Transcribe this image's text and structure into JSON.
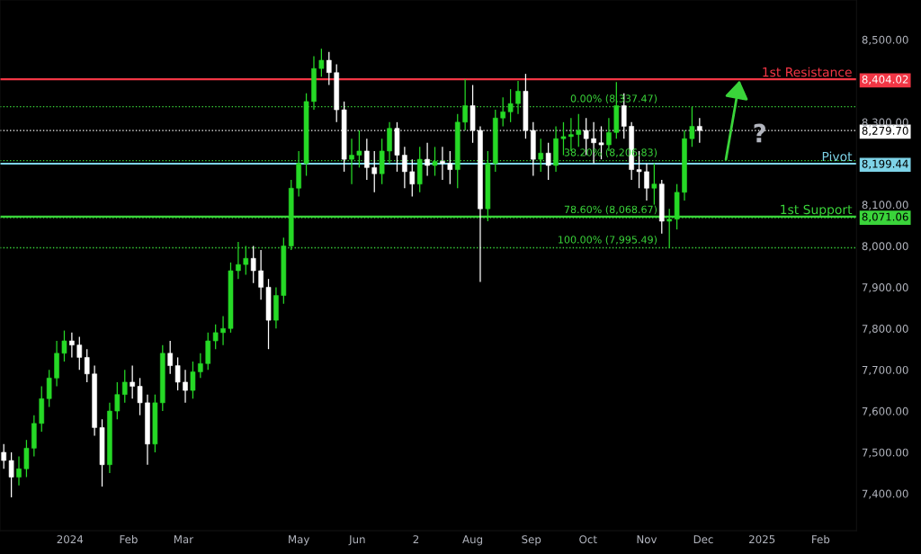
{
  "chart_data": {
    "type": "candlestick",
    "x": [
      "2023-11-27",
      "2023-12-01",
      "2023-12-05",
      "2023-12-09",
      "2023-12-13",
      "2023-12-17",
      "2023-12-21",
      "2023-12-25",
      "2023-12-29",
      "2024-01-02",
      "2024-01-06",
      "2024-01-10",
      "2024-01-14",
      "2024-01-18",
      "2024-01-22",
      "2024-01-26",
      "2024-01-30",
      "2024-02-03",
      "2024-02-07",
      "2024-02-11",
      "2024-02-15",
      "2024-02-19",
      "2024-02-23",
      "2024-02-27",
      "2024-03-02",
      "2024-03-06",
      "2024-03-10",
      "2024-03-14",
      "2024-03-18",
      "2024-03-22",
      "2024-03-26",
      "2024-03-30",
      "2024-04-03",
      "2024-04-07",
      "2024-04-11",
      "2024-04-15",
      "2024-04-19",
      "2024-04-23",
      "2024-04-27",
      "2024-05-01",
      "2024-05-05",
      "2024-05-09",
      "2024-05-13",
      "2024-05-17",
      "2024-05-21",
      "2024-05-25",
      "2024-05-29",
      "2024-06-02",
      "2024-06-06",
      "2024-06-10",
      "2024-06-14",
      "2024-06-18",
      "2024-06-22",
      "2024-06-26",
      "2024-06-30",
      "2024-07-04",
      "2024-07-08",
      "2024-07-12",
      "2024-07-16",
      "2024-07-20",
      "2024-07-24",
      "2024-07-28",
      "2024-08-01",
      "2024-08-05",
      "2024-08-09",
      "2024-08-13",
      "2024-08-17",
      "2024-08-21",
      "2024-08-25",
      "2024-08-29",
      "2024-09-02",
      "2024-09-06",
      "2024-09-10",
      "2024-09-14",
      "2024-09-18",
      "2024-09-22",
      "2024-09-26",
      "2024-09-30",
      "2024-10-04",
      "2024-10-08",
      "2024-10-12",
      "2024-10-16",
      "2024-10-20",
      "2024-10-24",
      "2024-10-28",
      "2024-11-01",
      "2024-11-05",
      "2024-11-09",
      "2024-11-13",
      "2024-11-17",
      "2024-11-21",
      "2024-11-25",
      "2024-11-29"
    ],
    "ohlc": [
      [
        7500,
        7520,
        7460,
        7480
      ],
      [
        7480,
        7500,
        7391,
        7440
      ],
      [
        7440,
        7490,
        7420,
        7460
      ],
      [
        7460,
        7530,
        7440,
        7510
      ],
      [
        7510,
        7590,
        7490,
        7570
      ],
      [
        7570,
        7660,
        7550,
        7630
      ],
      [
        7630,
        7700,
        7610,
        7680
      ],
      [
        7680,
        7770,
        7660,
        7740
      ],
      [
        7740,
        7795,
        7720,
        7770
      ],
      [
        7770,
        7790,
        7730,
        7760
      ],
      [
        7760,
        7780,
        7700,
        7730
      ],
      [
        7730,
        7750,
        7670,
        7690
      ],
      [
        7690,
        7710,
        7540,
        7560
      ],
      [
        7560,
        7580,
        7417,
        7470
      ],
      [
        7470,
        7620,
        7450,
        7600
      ],
      [
        7600,
        7670,
        7580,
        7640
      ],
      [
        7640,
        7700,
        7620,
        7670
      ],
      [
        7670,
        7710,
        7630,
        7660
      ],
      [
        7660,
        7680,
        7590,
        7620
      ],
      [
        7620,
        7640,
        7470,
        7520
      ],
      [
        7520,
        7640,
        7500,
        7620
      ],
      [
        7620,
        7760,
        7600,
        7740
      ],
      [
        7740,
        7770,
        7690,
        7710
      ],
      [
        7710,
        7730,
        7650,
        7670
      ],
      [
        7670,
        7700,
        7620,
        7650
      ],
      [
        7650,
        7720,
        7630,
        7695
      ],
      [
        7695,
        7740,
        7680,
        7715
      ],
      [
        7715,
        7790,
        7700,
        7770
      ],
      [
        7770,
        7810,
        7750,
        7790
      ],
      [
        7790,
        7830,
        7760,
        7800
      ],
      [
        7800,
        7960,
        7790,
        7940
      ],
      [
        7940,
        8010,
        7920,
        7955
      ],
      [
        7955,
        8000,
        7930,
        7970
      ],
      [
        7970,
        8000,
        7910,
        7940
      ],
      [
        7940,
        7990,
        7870,
        7900
      ],
      [
        7900,
        7920,
        7750,
        7820
      ],
      [
        7820,
        7900,
        7800,
        7880
      ],
      [
        7880,
        8020,
        7860,
        8000
      ],
      [
        8000,
        8160,
        7990,
        8140
      ],
      [
        8140,
        8230,
        8120,
        8200
      ],
      [
        8200,
        8370,
        8170,
        8350
      ],
      [
        8350,
        8460,
        8330,
        8430
      ],
      [
        8430,
        8478,
        8410,
        8450
      ],
      [
        8450,
        8470,
        8390,
        8420
      ],
      [
        8420,
        8440,
        8300,
        8330
      ],
      [
        8330,
        8350,
        8180,
        8210
      ],
      [
        8210,
        8260,
        8150,
        8220
      ],
      [
        8220,
        8280,
        8190,
        8230
      ],
      [
        8230,
        8260,
        8160,
        8190
      ],
      [
        8190,
        8230,
        8130,
        8175
      ],
      [
        8175,
        8260,
        8150,
        8230
      ],
      [
        8230,
        8300,
        8200,
        8285
      ],
      [
        8285,
        8300,
        8180,
        8220
      ],
      [
        8220,
        8240,
        8140,
        8180
      ],
      [
        8180,
        8210,
        8120,
        8150
      ],
      [
        8150,
        8240,
        8130,
        8210
      ],
      [
        8210,
        8250,
        8170,
        8195
      ],
      [
        8195,
        8240,
        8170,
        8205
      ],
      [
        8205,
        8240,
        8160,
        8200
      ],
      [
        8200,
        8230,
        8150,
        8185
      ],
      [
        8185,
        8320,
        8140,
        8300
      ],
      [
        8300,
        8404,
        8280,
        8340
      ],
      [
        8340,
        8390,
        8250,
        8280
      ],
      [
        8280,
        8290,
        7913,
        8090
      ],
      [
        8090,
        8230,
        8060,
        8200
      ],
      [
        8200,
        8330,
        8180,
        8310
      ],
      [
        8310,
        8360,
        8290,
        8325
      ],
      [
        8325,
        8380,
        8300,
        8345
      ],
      [
        8345,
        8400,
        8320,
        8375
      ],
      [
        8375,
        8417,
        8260,
        8280
      ],
      [
        8280,
        8300,
        8170,
        8210
      ],
      [
        8210,
        8260,
        8180,
        8225
      ],
      [
        8225,
        8250,
        8160,
        8195
      ],
      [
        8195,
        8290,
        8180,
        8260
      ],
      [
        8260,
        8300,
        8220,
        8265
      ],
      [
        8265,
        8310,
        8230,
        8270
      ],
      [
        8270,
        8320,
        8240,
        8280
      ],
      [
        8280,
        8310,
        8220,
        8260
      ],
      [
        8260,
        8300,
        8200,
        8250
      ],
      [
        8250,
        8290,
        8210,
        8245
      ],
      [
        8245,
        8310,
        8230,
        8275
      ],
      [
        8275,
        8397,
        8260,
        8340
      ],
      [
        8340,
        8370,
        8260,
        8290
      ],
      [
        8290,
        8300,
        8160,
        8185
      ],
      [
        8185,
        8230,
        8140,
        8180
      ],
      [
        8180,
        8200,
        8110,
        8140
      ],
      [
        8140,
        8200,
        8100,
        8150
      ],
      [
        8150,
        8160,
        8030,
        8060
      ],
      [
        8060,
        8090,
        7995.49,
        8065
      ],
      [
        8065,
        8150,
        8040,
        8130
      ],
      [
        8130,
        8280,
        8110,
        8260
      ],
      [
        8260,
        8337.47,
        8240,
        8290
      ],
      [
        8290,
        8310,
        8250,
        8279.7
      ]
    ],
    "colors": [
      "#ffffff",
      "#ffffff",
      "#26d926",
      "#26d926",
      "#26d926",
      "#26d926",
      "#26d926",
      "#26d926",
      "#26d926",
      "#ffffff",
      "#ffffff",
      "#ffffff",
      "#ffffff",
      "#ffffff",
      "#26d926",
      "#26d926",
      "#26d926",
      "#ffffff",
      "#ffffff",
      "#ffffff",
      "#26d926",
      "#26d926",
      "#ffffff",
      "#ffffff",
      "#ffffff",
      "#26d926",
      "#26d926",
      "#26d926",
      "#26d926",
      "#26d926",
      "#26d926",
      "#26d926",
      "#26d926",
      "#ffffff",
      "#ffffff",
      "#ffffff",
      "#26d926",
      "#26d926",
      "#26d926",
      "#26d926",
      "#26d926",
      "#26d926",
      "#26d926",
      "#ffffff",
      "#ffffff",
      "#ffffff",
      "#26d926",
      "#26d926",
      "#ffffff",
      "#ffffff",
      "#26d926",
      "#26d926",
      "#ffffff",
      "#ffffff",
      "#ffffff",
      "#26d926",
      "#ffffff",
      "#26d926",
      "#ffffff",
      "#ffffff",
      "#26d926",
      "#26d926",
      "#ffffff",
      "#ffffff",
      "#26d926",
      "#26d926",
      "#26d926",
      "#26d926",
      "#26d926",
      "#ffffff",
      "#ffffff",
      "#26d926",
      "#ffffff",
      "#26d926",
      "#26d926",
      "#26d926",
      "#26d926",
      "#ffffff",
      "#ffffff",
      "#ffffff",
      "#26d926",
      "#26d926",
      "#ffffff",
      "#ffffff",
      "#ffffff",
      "#ffffff",
      "#26d926",
      "#ffffff",
      "#26d926",
      "#26d926",
      "#26d926",
      "#26d926",
      "#ffffff"
    ],
    "xlim": [
      "2023-11-25",
      "2025-02-20"
    ],
    "ylim": [
      7310,
      8596
    ],
    "xticks": [
      {
        "value": "2024-01-01",
        "label": "2024"
      },
      {
        "value": "2024-02-01",
        "label": "Feb"
      },
      {
        "value": "2024-03-01",
        "label": "Mar"
      },
      {
        "value": "2024-05-01",
        "label": "May"
      },
      {
        "value": "2024-06-01",
        "label": "Jun"
      },
      {
        "value": "2024-07-02",
        "label": "2"
      },
      {
        "value": "2024-08-01",
        "label": "Aug"
      },
      {
        "value": "2024-09-01",
        "label": "Sep"
      },
      {
        "value": "2024-10-01",
        "label": "Oct"
      },
      {
        "value": "2024-11-01",
        "label": "Nov"
      },
      {
        "value": "2024-12-01",
        "label": "Dec"
      },
      {
        "value": "2025-01-01",
        "label": "2025"
      },
      {
        "value": "2025-02-01",
        "label": "Feb"
      }
    ],
    "yticks": [
      {
        "value": 7400,
        "label": "7,400.00"
      },
      {
        "value": 7500,
        "label": "7,500.00"
      },
      {
        "value": 7600,
        "label": "7,600.00"
      },
      {
        "value": 7700,
        "label": "7,700.00"
      },
      {
        "value": 7800,
        "label": "7,800.00"
      },
      {
        "value": 7900,
        "label": "7,900.00"
      },
      {
        "value": 8000,
        "label": "8,000.00"
      },
      {
        "value": 8071.06,
        "label": "8,071.06"
      },
      {
        "value": 8100,
        "label": "8,100.00"
      },
      {
        "value": 8199.44,
        "label": "8,199.44"
      },
      {
        "value": 8279.7,
        "label": "8,279.70"
      },
      {
        "value": 8300,
        "label": "8,300.00"
      },
      {
        "value": 8404.02,
        "label": "8,404.02"
      },
      {
        "value": 8500,
        "label": "8,500.00"
      }
    ],
    "ref_lines": [
      {
        "axis": "y",
        "value": 8404.02,
        "label": "1st Resistance",
        "color": "#f23645",
        "line_style": "solid"
      },
      {
        "axis": "y",
        "value": 8199.44,
        "label": "Pivot",
        "color": "#7ed3e8",
        "line_style": "solid"
      },
      {
        "axis": "y",
        "value": 8071.06,
        "label": "1st Support",
        "color": "#3ad43a",
        "line_style": "solid"
      },
      {
        "axis": "y",
        "value": 8279.7,
        "label": null,
        "color": "#ffffff",
        "line_style": "dotted"
      },
      {
        "axis": "y",
        "value": 8337.47,
        "label": null,
        "color": "#3ad43a",
        "line_style": "dotted"
      },
      {
        "axis": "y",
        "value": 8206.83,
        "label": null,
        "color": "#3ad43a",
        "line_style": "dotted"
      },
      {
        "axis": "y",
        "value": 8068.67,
        "label": null,
        "color": "#3ad43a",
        "line_style": "dotted"
      },
      {
        "axis": "y",
        "value": 7995.49,
        "label": null,
        "color": "#3ad43a",
        "line_style": "dotted"
      }
    ],
    "annotations": [
      {
        "text": "0.00% (8,337.47)",
        "x": "2024-11-12",
        "y": 8337.47
      },
      {
        "text": "38.20% (8,206.83)",
        "x": "2024-11-12",
        "y": 8206.83
      },
      {
        "text": "78.60% (8,068.67)",
        "x": "2024-11-12",
        "y": 8068.67
      },
      {
        "text": "100.00% (7,995.49)",
        "x": "2024-11-12",
        "y": 7995.49
      },
      "?"
    ]
  }
}
